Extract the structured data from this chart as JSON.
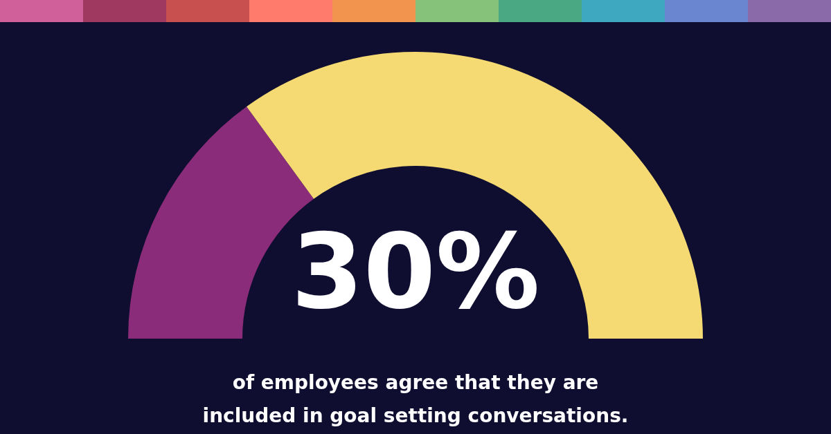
{
  "chart_data": {
    "type": "donut",
    "categories": [
      null,
      null
    ],
    "values": [
      30,
      70
    ],
    "colors": [
      "#8b2c7a",
      "#f5da73"
    ],
    "title": "30%",
    "subtitle": "of employees agree that they are included in goal setting conversations."
  }
}
